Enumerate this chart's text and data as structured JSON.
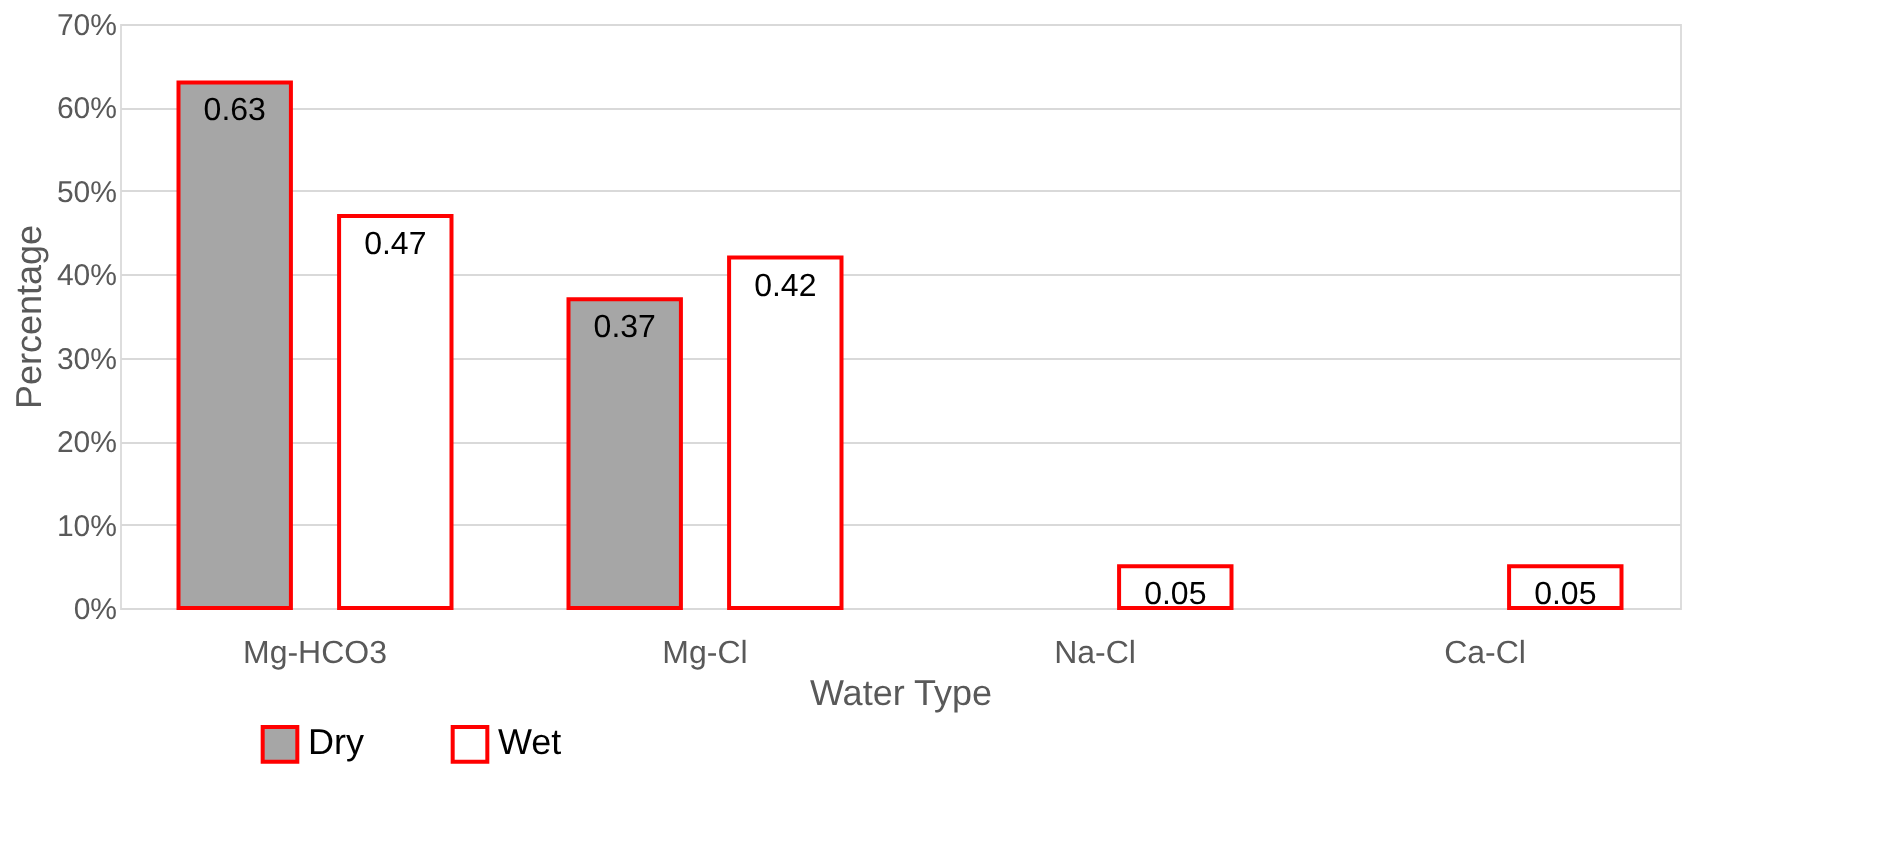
{
  "chart_data": {
    "type": "bar",
    "xlabel": "Water Type",
    "ylabel": "Percentage",
    "categories": [
      "Mg-HCO3",
      "Mg-Cl",
      "Na-Cl",
      "Ca-Cl"
    ],
    "series": [
      {
        "name": "Dry",
        "color": "#a6a6a6",
        "values": [
          0.63,
          0.37,
          null,
          null
        ]
      },
      {
        "name": "Wet",
        "color": "#ffffff",
        "values": [
          0.47,
          0.42,
          0.05,
          0.05
        ]
      }
    ],
    "ylim": [
      0,
      0.7
    ],
    "yticks": [
      {
        "value": 0,
        "label": "0%"
      },
      {
        "value": 0.1,
        "label": "10%"
      },
      {
        "value": 0.2,
        "label": "20%"
      },
      {
        "value": 0.3,
        "label": "30%"
      },
      {
        "value": 0.4,
        "label": "40%"
      },
      {
        "value": 0.5,
        "label": "50%"
      },
      {
        "value": 0.6,
        "label": "60%"
      },
      {
        "value": 0.7,
        "label": "70%"
      }
    ],
    "data_labels": true,
    "grid": "y",
    "legend": "bottom left"
  }
}
